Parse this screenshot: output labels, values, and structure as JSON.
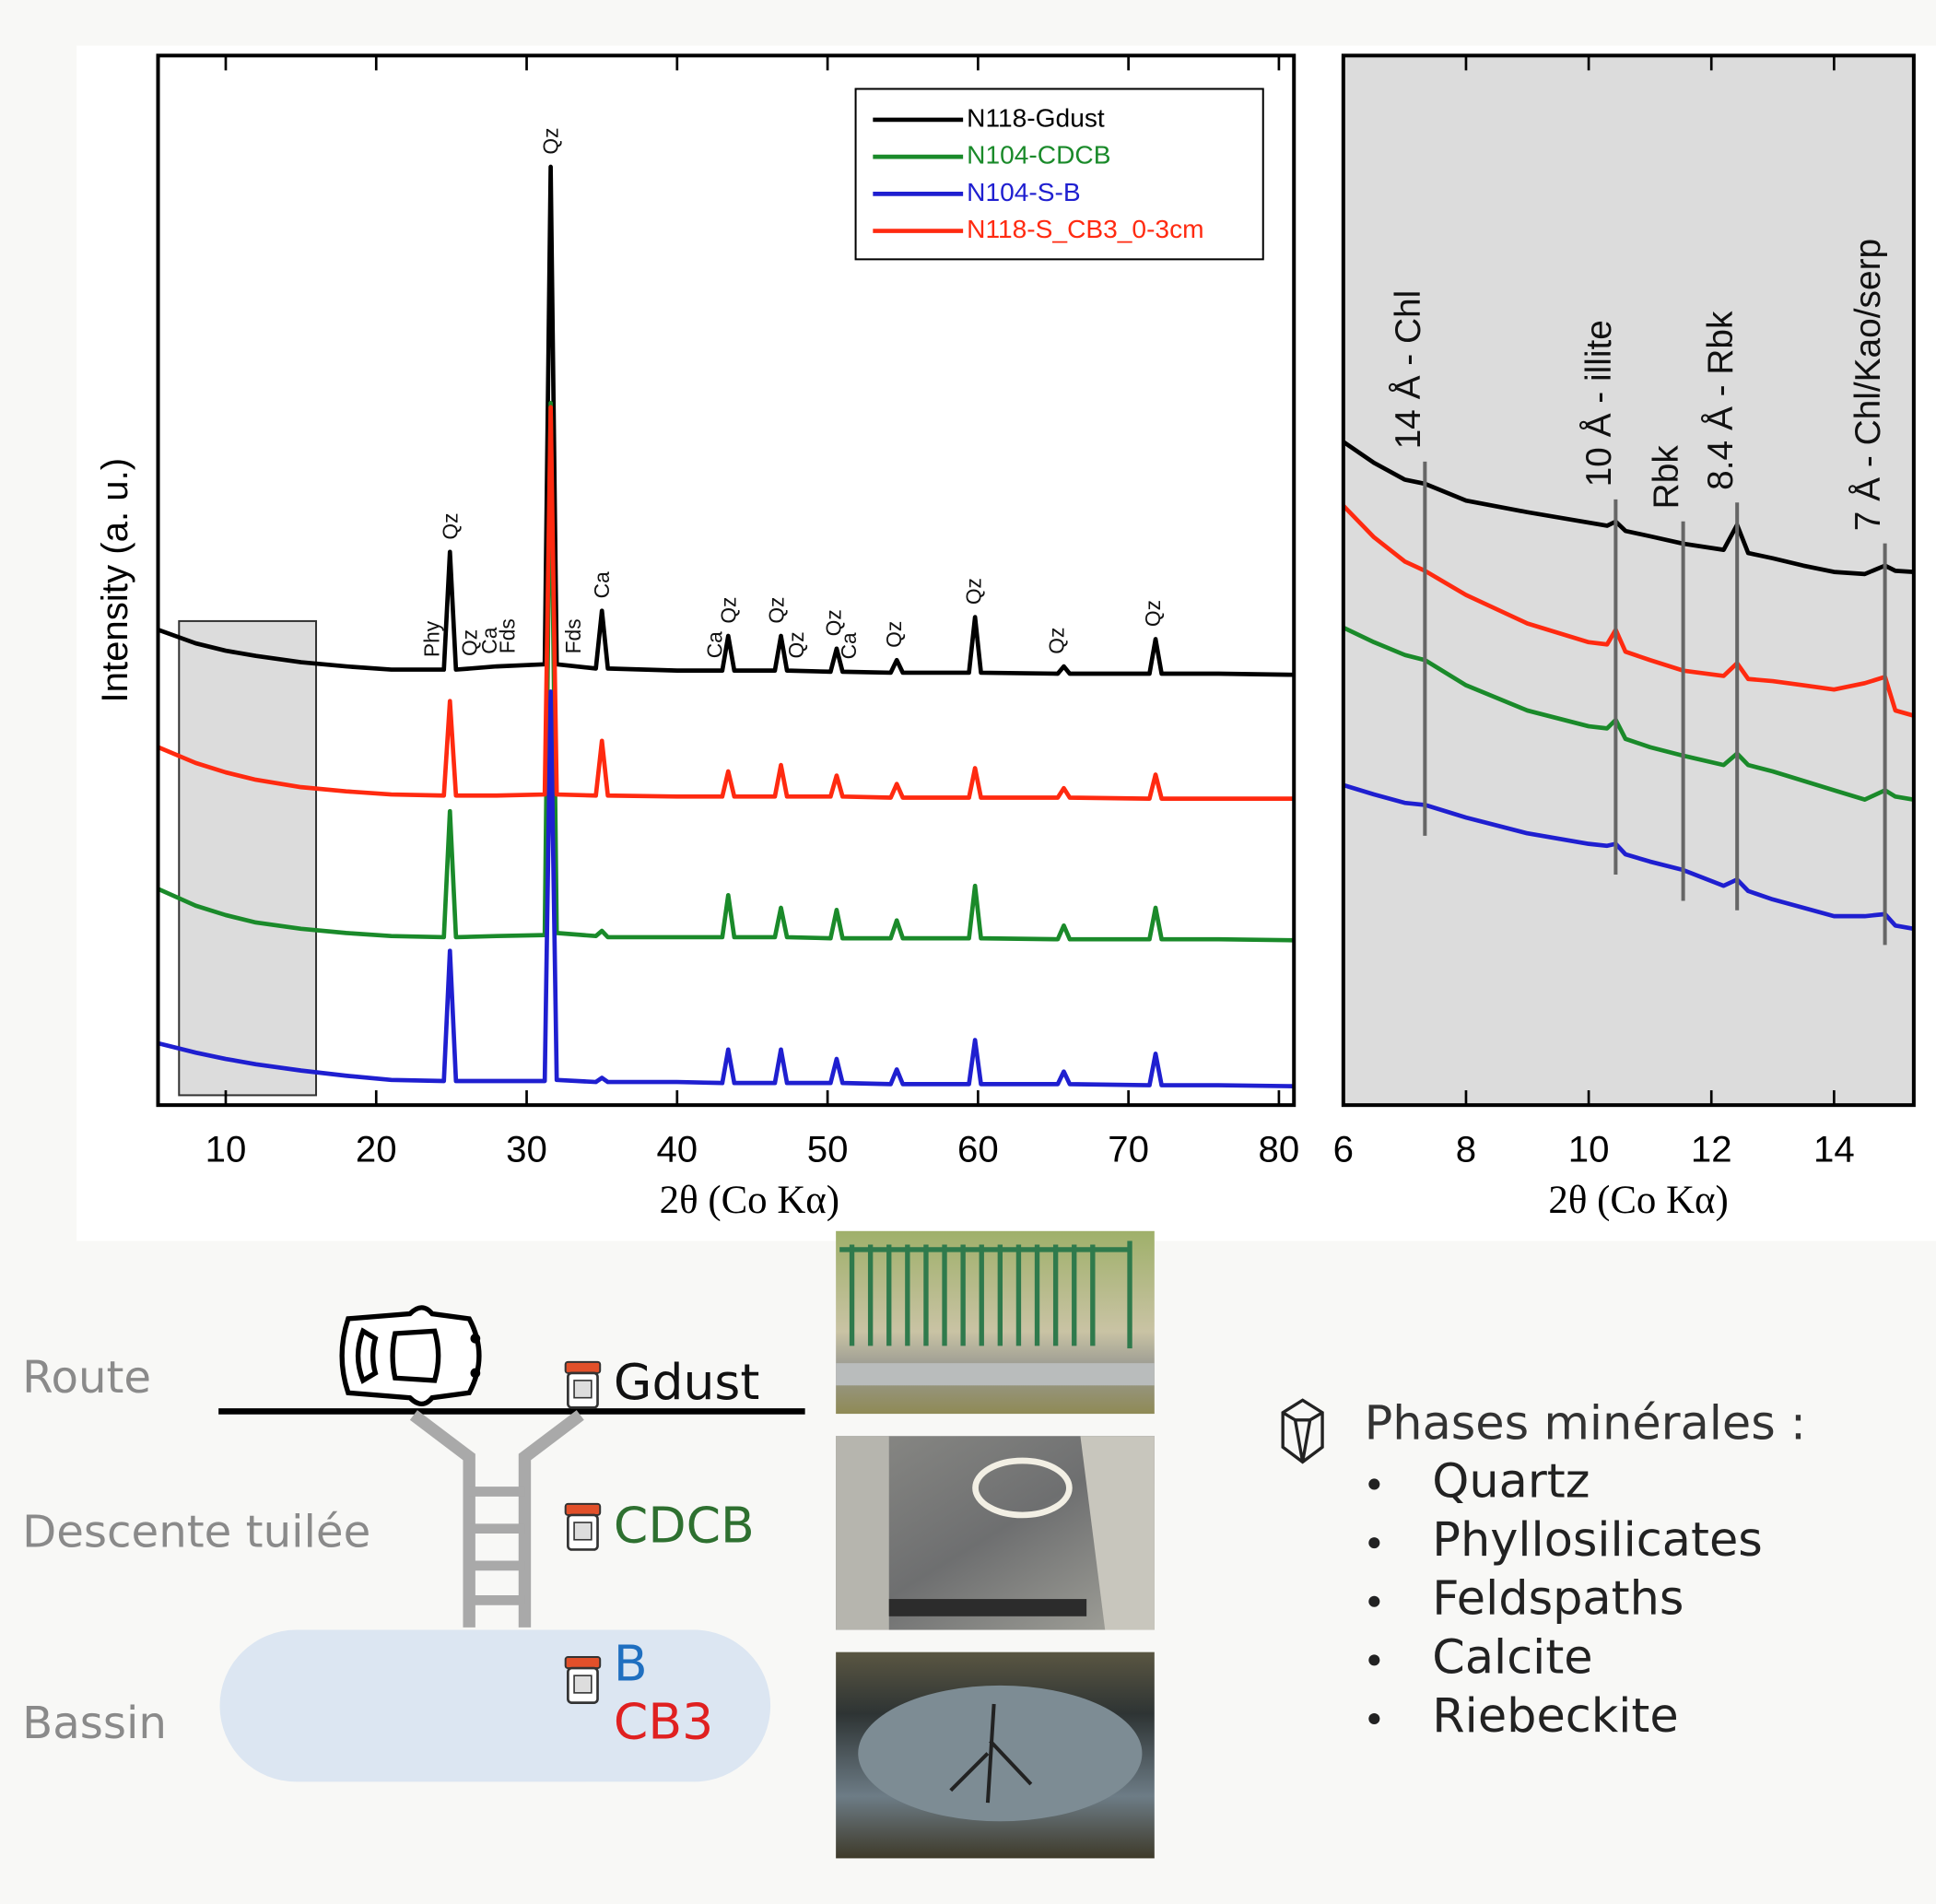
{
  "chart_data": [
    {
      "type": "line",
      "x_label": "2θ (Co Kα)",
      "y_label": "Intensity (a. u.)",
      "x": [
        5.5,
        8,
        10,
        12,
        15,
        18,
        21,
        24.5,
        24.9,
        25.3,
        28,
        31.2,
        31.6,
        32.0,
        34.6,
        35.0,
        35.4,
        40,
        43.0,
        43.4,
        43.8,
        46.5,
        46.9,
        47.3,
        50.2,
        50.6,
        51.0,
        54.2,
        54.6,
        55.0,
        59.4,
        59.8,
        60.2,
        65.3,
        65.7,
        66.1,
        71.4,
        71.8,
        72.2,
        76,
        81
      ],
      "series": [
        {
          "name": "N118-Gdust",
          "color": "#000000",
          "values": [
            45.3,
            44.0,
            43.3,
            42.8,
            42.2,
            41.8,
            41.5,
            41.5,
            52.7,
            41.5,
            41.8,
            42.0,
            89.4,
            42.0,
            41.6,
            47.1,
            41.6,
            41.4,
            41.4,
            44.7,
            41.4,
            41.4,
            44.7,
            41.4,
            41.3,
            43.5,
            41.3,
            41.2,
            42.4,
            41.2,
            41.2,
            46.5,
            41.2,
            41.1,
            41.8,
            41.1,
            41.1,
            44.4,
            41.1,
            41.1,
            41.0
          ]
        },
        {
          "name": "N104-CDCB",
          "color": "#1a8a2a",
          "values": [
            20.6,
            19.0,
            18.1,
            17.4,
            16.8,
            16.4,
            16.1,
            16.0,
            28.0,
            16.0,
            16.1,
            16.2,
            66.9,
            16.4,
            16.1,
            16.6,
            16.0,
            16.0,
            16.0,
            20.0,
            16.0,
            16.0,
            18.8,
            16.0,
            15.9,
            18.6,
            15.9,
            15.9,
            17.6,
            15.9,
            15.9,
            20.9,
            15.9,
            15.8,
            17.1,
            15.8,
            15.8,
            18.8,
            15.8,
            15.8,
            15.7
          ]
        },
        {
          "name": "N104-S-B",
          "color": "#1f1fd0",
          "values": [
            5.9,
            5.0,
            4.4,
            3.9,
            3.3,
            2.8,
            2.4,
            2.3,
            14.7,
            2.3,
            2.3,
            2.3,
            39.4,
            2.4,
            2.2,
            2.6,
            2.2,
            2.2,
            2.1,
            5.3,
            2.1,
            2.1,
            5.3,
            2.1,
            2.1,
            4.4,
            2.1,
            2.0,
            3.4,
            2.0,
            2.0,
            6.2,
            2.0,
            2.0,
            3.2,
            2.0,
            1.9,
            4.9,
            1.9,
            1.9,
            1.8
          ]
        },
        {
          "name": "N118-S_CB3_0-3cm",
          "color": "#ff2a10",
          "values": [
            34.1,
            32.6,
            31.7,
            31.0,
            30.3,
            29.9,
            29.6,
            29.5,
            38.5,
            29.5,
            29.5,
            29.6,
            66.5,
            29.6,
            29.5,
            34.7,
            29.5,
            29.4,
            29.4,
            31.8,
            29.4,
            29.4,
            32.4,
            29.4,
            29.4,
            31.4,
            29.4,
            29.3,
            30.6,
            29.3,
            29.3,
            32.1,
            29.3,
            29.3,
            30.2,
            29.3,
            29.2,
            31.5,
            29.2,
            29.2,
            29.2
          ]
        }
      ],
      "xlim": [
        5.5,
        81
      ],
      "ylim": [
        0,
        100
      ],
      "xticks": [
        10,
        20,
        30,
        40,
        50,
        60,
        70,
        80
      ],
      "legend": "upper right",
      "annotations": [
        {
          "label": "Phy",
          "x": 23.7
        },
        {
          "label": "Qz",
          "x": 24.9
        },
        {
          "label": "Qz",
          "x": 26.2
        },
        {
          "label": "Ca",
          "x": 27.5
        },
        {
          "label": "Fds",
          "x": 28.7
        },
        {
          "label": "Qz",
          "x": 31.6
        },
        {
          "label": "Fds",
          "x": 33.1
        },
        {
          "label": "Ca",
          "x": 35.0
        },
        {
          "label": "Ca",
          "x": 42.5
        },
        {
          "label": "Qz",
          "x": 43.4
        },
        {
          "label": "Qz",
          "x": 46.6
        },
        {
          "label": "Qz",
          "x": 47.9
        },
        {
          "label": "Qz",
          "x": 50.4
        },
        {
          "label": "Ca",
          "x": 51.4
        },
        {
          "label": "Qz",
          "x": 54.4
        },
        {
          "label": "Qz",
          "x": 59.7
        },
        {
          "label": "Qz",
          "x": 65.2
        },
        {
          "label": "Qz",
          "x": 71.6
        }
      ]
    },
    {
      "type": "line",
      "x_label": "2θ (Co Kα)",
      "x": [
        6,
        6.5,
        7,
        7.33,
        8,
        9,
        10,
        10.3,
        10.44,
        10.6,
        11,
        11.54,
        12.2,
        12.42,
        12.6,
        13,
        13.5,
        14,
        14.5,
        14.83,
        15,
        15.3
      ],
      "series": [
        {
          "color": "#000000",
          "values": [
            63.2,
            61.2,
            59.6,
            59.2,
            57.6,
            56.5,
            55.5,
            55.2,
            55.6,
            54.7,
            54.2,
            53.5,
            52.9,
            55.3,
            52.6,
            52.1,
            51.4,
            50.8,
            50.6,
            51.4,
            50.9,
            50.8
          ]
        },
        {
          "color": "#ff2a10",
          "values": [
            57.1,
            54.1,
            51.8,
            50.9,
            48.6,
            45.9,
            44.1,
            43.9,
            45.3,
            43.2,
            42.4,
            41.4,
            40.9,
            42.1,
            40.6,
            40.4,
            40.0,
            39.6,
            40.2,
            40.8,
            37.6,
            37.1
          ]
        },
        {
          "color": "#1a8a2a",
          "values": [
            45.5,
            44.1,
            42.9,
            42.4,
            40.0,
            37.6,
            36.1,
            35.9,
            36.7,
            34.9,
            34.1,
            33.3,
            32.4,
            33.5,
            32.4,
            31.8,
            30.9,
            30.0,
            29.1,
            30.0,
            29.4,
            29.1
          ]
        },
        {
          "color": "#1f1fd0",
          "values": [
            30.5,
            29.6,
            28.8,
            28.6,
            27.4,
            25.9,
            24.9,
            24.7,
            24.9,
            23.9,
            23.2,
            22.4,
            20.9,
            21.5,
            20.4,
            19.6,
            18.8,
            18.0,
            18.0,
            18.2,
            17.1,
            16.8
          ]
        }
      ],
      "xlim": [
        6,
        15.3
      ],
      "ylim": [
        0,
        100
      ],
      "xticks": [
        6,
        8,
        10,
        12,
        14
      ],
      "markers": [
        {
          "label": "14 Å - Chl",
          "x": 7.33
        },
        {
          "label": "10 Å - illite",
          "x": 10.44
        },
        {
          "label": "Rbk",
          "x": 11.54
        },
        {
          "label": "8.4 Å - Rbk",
          "x": 12.42
        },
        {
          "label": "7 Å - Chl/Kao/serp",
          "x": 14.83
        }
      ]
    }
  ],
  "diagram": {
    "zones": [
      "Route",
      "Descente tuilée",
      "Bassin"
    ],
    "samples": [
      "Gdust",
      "CDCB",
      "B",
      "CB3"
    ]
  },
  "phases": {
    "title": "Phases minérales :",
    "items": [
      "Quartz",
      "Phyllosilicates",
      "Feldspaths",
      "Calcite",
      "Riebeckite"
    ]
  }
}
